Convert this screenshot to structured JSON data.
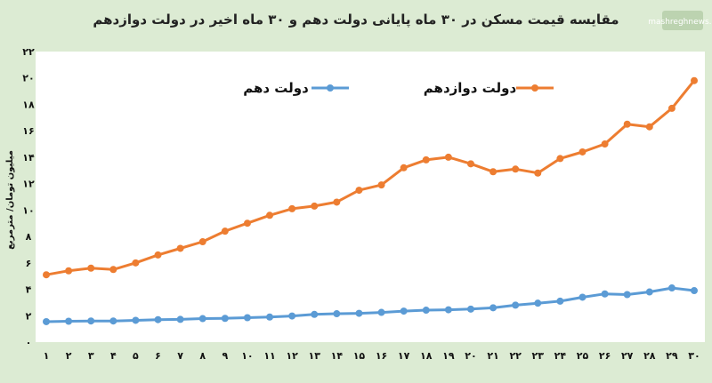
{
  "chart_data": {
    "type": "line",
    "title": "مقایسه قیمت مسکن در ۳۰ ماه پایانی دولت دهم و ۳۰ ماه اخیر در دولت دوازدهم",
    "xlabel": "",
    "ylabel": "میلیون تومان/ مترمربع",
    "x": [
      "۱",
      "۲",
      "۳",
      "۴",
      "۵",
      "۶",
      "۷",
      "۸",
      "۹",
      "۱۰",
      "۱۱",
      "۱۲",
      "۱۳",
      "۱۴",
      "۱۵",
      "۱۶",
      "۱۷",
      "۱۸",
      "۱۹",
      "۲۰",
      "۲۱",
      "۲۲",
      "۲۳",
      "۲۴",
      "۲۵",
      "۲۶",
      "۲۷",
      "۲۸",
      "۲۹",
      "۳۰"
    ],
    "yticks": [
      "۰",
      "۲",
      "۴",
      "۶",
      "۸",
      "۱۰",
      "۱۲",
      "۱۴",
      "۱۶",
      "۱۸",
      "۲۰",
      "۲۲"
    ],
    "ylim": [
      0,
      22
    ],
    "grid": false,
    "legend_position": "top-center",
    "series": [
      {
        "name": "دولت دوازدهم",
        "color": "#ed7d31",
        "values": [
          5.1,
          5.4,
          5.6,
          5.5,
          6.0,
          6.6,
          7.1,
          7.6,
          8.4,
          9.0,
          9.6,
          10.1,
          10.3,
          10.6,
          11.5,
          11.9,
          13.2,
          13.8,
          14.0,
          13.5,
          12.9,
          13.1,
          12.8,
          13.9,
          14.4,
          15.0,
          16.5,
          16.3,
          17.7,
          19.8
        ]
      },
      {
        "name": "دولت دهم",
        "color": "#5b9bd5",
        "values": [
          1.55,
          1.58,
          1.6,
          1.6,
          1.65,
          1.7,
          1.72,
          1.78,
          1.8,
          1.85,
          1.9,
          1.98,
          2.1,
          2.15,
          2.18,
          2.25,
          2.35,
          2.42,
          2.45,
          2.5,
          2.6,
          2.8,
          2.95,
          3.1,
          3.4,
          3.65,
          3.6,
          3.8,
          4.1,
          3.9
        ]
      }
    ]
  }
}
